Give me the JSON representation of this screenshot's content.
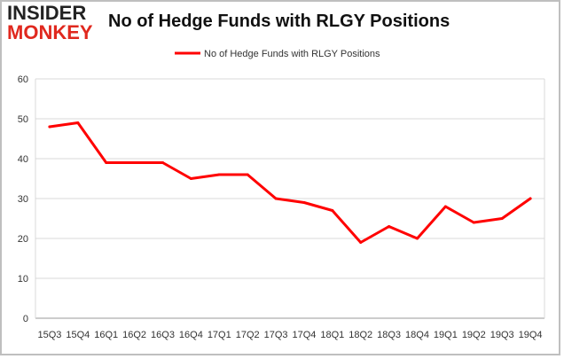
{
  "logo": {
    "line1": "INSIDER",
    "line2": "MONKEY"
  },
  "chart_data": {
    "type": "line",
    "title": "No of Hedge Funds with RLGY Positions",
    "xlabel": "",
    "ylabel": "",
    "categories": [
      "15Q3",
      "15Q4",
      "16Q1",
      "16Q2",
      "16Q3",
      "16Q4",
      "17Q1",
      "17Q2",
      "17Q3",
      "17Q4",
      "18Q1",
      "18Q2",
      "18Q3",
      "18Q4",
      "19Q1",
      "19Q2",
      "19Q3",
      "19Q4"
    ],
    "series": [
      {
        "name": "No of Hedge Funds with RLGY Positions",
        "values": [
          48,
          49,
          39,
          39,
          39,
          35,
          36,
          36,
          30,
          29,
          27,
          19,
          23,
          20,
          28,
          24,
          25,
          30
        ],
        "color": "#ff0000"
      }
    ],
    "ylim": [
      0,
      60
    ],
    "yticks": [
      0,
      10,
      20,
      30,
      40,
      50,
      60
    ],
    "grid": true,
    "legend": "top-center"
  }
}
